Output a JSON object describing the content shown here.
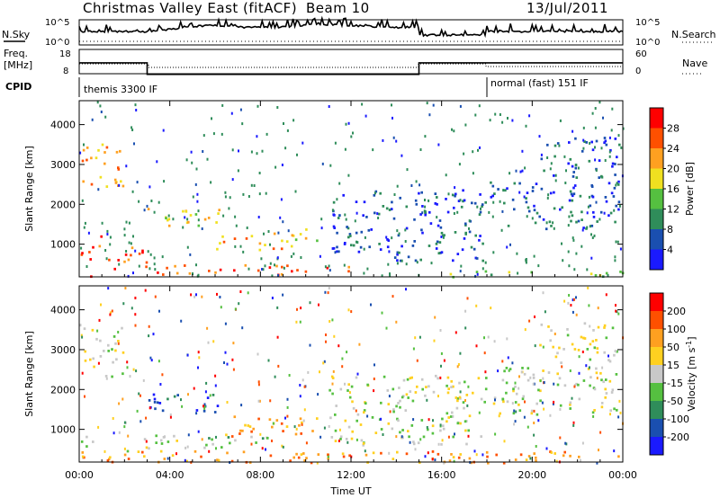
{
  "title_left": "Christmas Valley East (fitACF)",
  "title_center": "Beam 10",
  "title_right": "13/Jul/2011",
  "header": {
    "nsky_label": "N.Sky",
    "nsky_ticks": [
      "10^5",
      "10^0"
    ],
    "nsearch_label": "N.Search",
    "nsearch_ticks": [
      "10^5",
      "10^0"
    ],
    "freq_label": "Freq.",
    "freq_unit": "[MHz]",
    "freq_ticks": [
      "18",
      "8"
    ],
    "nave_label": "Nave",
    "nave_ticks": [
      "60",
      "0"
    ],
    "cpid_label": "CPID",
    "cpid_segments": [
      {
        "label": "themis 3300 IF",
        "start_hour": 0
      },
      {
        "label": "normal (fast) 151 IF",
        "start_hour": 18
      }
    ],
    "freq_steps": [
      {
        "start_hour": 0,
        "end_hour": 3,
        "level": 13.2
      },
      {
        "start_hour": 3,
        "end_hour": 15,
        "level": 8.5
      },
      {
        "start_hour": 15,
        "end_hour": 24,
        "level": 13.2
      }
    ]
  },
  "chart_data": [
    {
      "type": "heatmap",
      "panel": "power",
      "xlabel": "",
      "ylabel": "Slant Range [km]",
      "xlim": [
        0,
        24
      ],
      "ylim": [
        180,
        4600
      ],
      "yticks": [
        "1000",
        "2000",
        "3000",
        "4000"
      ],
      "colorbar": {
        "label": "Power [dB]",
        "ticks": [
          "4",
          "8",
          "12",
          "16",
          "20",
          "24",
          "28"
        ],
        "colors": [
          "#1a1aff",
          "#1a4fb0",
          "#2f8d5a",
          "#55c040",
          "#f0e020",
          "#ffa020",
          "#ff5000",
          "#ff0000"
        ]
      },
      "regions": [
        {
          "t0": 0.1,
          "t1": 1.9,
          "r0": 2350,
          "r1": 3600,
          "level": 5
        },
        {
          "t0": 0.0,
          "t1": 0.6,
          "r0": 180,
          "r1": 950,
          "level": 6
        },
        {
          "t0": 0.5,
          "t1": 1.0,
          "r0": 900,
          "r1": 1350,
          "level": 6
        },
        {
          "t0": 1.1,
          "t1": 3.2,
          "r0": 400,
          "r1": 950,
          "level": 6
        },
        {
          "t0": 2.8,
          "t1": 6.2,
          "r0": 1450,
          "r1": 1950,
          "level": 4
        },
        {
          "t0": 6.0,
          "t1": 9.5,
          "r0": 850,
          "r1": 1300,
          "level": 5
        },
        {
          "t0": 9.3,
          "t1": 10.5,
          "r0": 1050,
          "r1": 1450,
          "level": 4
        },
        {
          "t0": 3.0,
          "t1": 12.0,
          "r0": 250,
          "r1": 500,
          "level": 6
        },
        {
          "t0": 11.0,
          "t1": 17.8,
          "r0": 600,
          "r1": 2400,
          "level": 1
        },
        {
          "t0": 15.5,
          "t1": 24.0,
          "r0": 200,
          "r1": 350,
          "level": 3
        },
        {
          "t0": 17.8,
          "t1": 23.8,
          "r0": 1400,
          "r1": 2600,
          "level": 1
        },
        {
          "t0": 20.3,
          "t1": 23.9,
          "r0": 2700,
          "r1": 3700,
          "level": 1
        }
      ]
    },
    {
      "type": "heatmap",
      "panel": "velocity",
      "xlabel": "Time UT",
      "ylabel": "Slant Range [km]",
      "xlim": [
        0,
        24
      ],
      "ylim": [
        180,
        4600
      ],
      "xticks": [
        "00:00",
        "04:00",
        "08:00",
        "12:00",
        "16:00",
        "20:00",
        "00:00"
      ],
      "yticks": [
        "1000",
        "2000",
        "3000",
        "4000"
      ],
      "colorbar": {
        "label": "Velocity [m s^-1]",
        "ticks": [
          "200",
          "100",
          "50",
          "15",
          "-15",
          "-50",
          "-100",
          "-200"
        ],
        "colors": [
          "#1a1aff",
          "#1a4fb0",
          "#2f8d5a",
          "#55c040",
          "#c8c8c8",
          "#ffd020",
          "#ffa020",
          "#ff5000",
          "#ff0000"
        ]
      },
      "regions": [
        {
          "t0": 0.1,
          "t1": 1.9,
          "r0": 2350,
          "r1": 3600,
          "level": 4
        },
        {
          "t0": 0.0,
          "t1": 0.6,
          "r0": 180,
          "r1": 950,
          "level": 3
        },
        {
          "t0": 2.8,
          "t1": 6.2,
          "r0": 1450,
          "r1": 1950,
          "level": 1
        },
        {
          "t0": 1.8,
          "t1": 4.5,
          "r0": 450,
          "r1": 900,
          "level": 4
        },
        {
          "t0": 5.0,
          "t1": 8.5,
          "r0": 500,
          "r1": 850,
          "level": 3
        },
        {
          "t0": 6.0,
          "t1": 10.5,
          "r0": 850,
          "r1": 1350,
          "level": 6
        },
        {
          "t0": 0.0,
          "t1": 24.0,
          "r0": 180,
          "r1": 480,
          "level": 6
        },
        {
          "t0": 11.0,
          "t1": 17.8,
          "r0": 600,
          "r1": 2400,
          "level": 4
        },
        {
          "t0": 17.8,
          "t1": 23.8,
          "r0": 1400,
          "r1": 2600,
          "level": 4
        },
        {
          "t0": 20.3,
          "t1": 23.9,
          "r0": 2700,
          "r1": 3700,
          "level": 4
        }
      ]
    }
  ]
}
